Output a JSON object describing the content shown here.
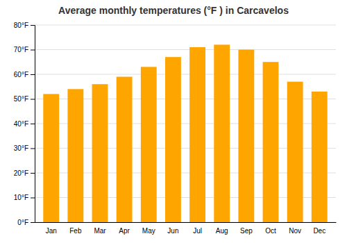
{
  "chart_data": {
    "type": "bar",
    "title": "Average monthly temperatures (°F ) in Carcavelos",
    "categories": [
      "Jan",
      "Feb",
      "Mar",
      "Apr",
      "May",
      "Jun",
      "Jul",
      "Aug",
      "Sep",
      "Oct",
      "Nov",
      "Dec"
    ],
    "values": [
      52,
      54,
      56,
      59,
      63,
      67,
      71,
      72,
      70,
      65,
      57,
      53
    ],
    "color": "#FFA500",
    "ylim": [
      0,
      80
    ],
    "yticks": [
      {
        "value": 0,
        "label": "0°F"
      },
      {
        "value": 10,
        "label": "10°F"
      },
      {
        "value": 20,
        "label": "20°F"
      },
      {
        "value": 30,
        "label": "30°F"
      },
      {
        "value": 40,
        "label": "40°F"
      },
      {
        "value": 50,
        "label": "50°F"
      },
      {
        "value": 60,
        "label": "60°F"
      },
      {
        "value": 70,
        "label": "70°F"
      },
      {
        "value": 80,
        "label": "80°F"
      }
    ],
    "grid": true
  }
}
